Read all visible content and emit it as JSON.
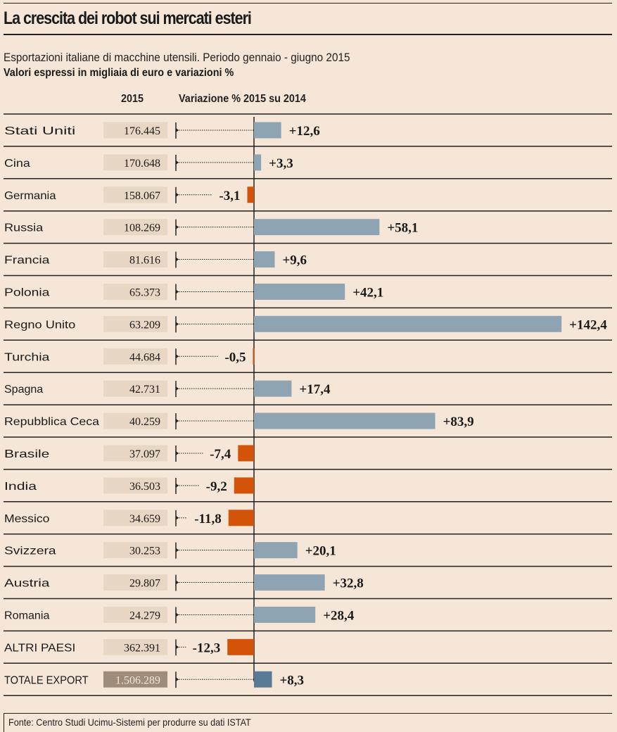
{
  "header": {
    "title": "La crescita dei robot sui mercati esteri",
    "subtitle": "Esportazioni italiane di macchine utensili. Periodo gennaio - giugno 2015",
    "units_note": "Valori espressi in migliaia di euro e variazioni %",
    "col_value": "2015",
    "col_change": "Variazione % 2015 su 2014"
  },
  "colors": {
    "background": "#f5e6d7",
    "positive_bar": "#8fa4b2",
    "negative_bar": "#d35409",
    "total_bar": "#587a94",
    "value_box": "#e8d7c4",
    "total_value_box": "#9e8b7a"
  },
  "chart_data": {
    "type": "bar",
    "orientation": "horizontal",
    "title": "La crescita dei robot sui mercati esteri",
    "subtitle": "Esportazioni italiane di macchine utensili. Periodo gennaio - giugno 2015",
    "xlabel": "Variazione % 2015 su 2014",
    "ylabel": "",
    "value_column_label": "2015",
    "unit": "migliaia di euro / variazione %",
    "xlim": [
      -13,
      143
    ],
    "grid": false,
    "legend": "none",
    "categories": [
      "Stati Uniti",
      "Cina",
      "Germania",
      "Russia",
      "Francia",
      "Polonia",
      "Regno Unito",
      "Turchia",
      "Spagna",
      "Repubblica Ceca",
      "Brasile",
      "India",
      "Messico",
      "Svizzera",
      "Austria",
      "Romania",
      "ALTRI PAESI",
      "TOTALE EXPORT"
    ],
    "values_2015_label": [
      "176.445",
      "170.648",
      "158.067",
      "108.269",
      "81.616",
      "65.373",
      "63.209",
      "44.684",
      "42.731",
      "40.259",
      "37.097",
      "36.503",
      "34.659",
      "30.253",
      "29.807",
      "24.279",
      "362.391",
      "1.506.289"
    ],
    "values_2015": [
      176445,
      170648,
      158067,
      108269,
      81616,
      65373,
      63209,
      44684,
      42731,
      40259,
      37097,
      36503,
      34659,
      30253,
      29807,
      24279,
      362391,
      1506289
    ],
    "change_pct": [
      12.6,
      3.3,
      -3.1,
      58.1,
      9.6,
      42.1,
      142.4,
      -0.5,
      17.4,
      83.9,
      -7.4,
      -9.2,
      -11.8,
      20.1,
      32.8,
      28.4,
      -12.3,
      8.3
    ],
    "change_labels": [
      "+12,6",
      "+3,3",
      "-3,1",
      "+58,1",
      "+9,6",
      "+42,1",
      "+142,4",
      "-0,5",
      "+17,4",
      "+83,9",
      "-7,4",
      "-9,2",
      "-11,8",
      "+20,1",
      "+32,8",
      "+28,4",
      "-12,3",
      "+8,3"
    ],
    "total_index": 17
  },
  "footer": {
    "source": "Fonte: Centro Studi Ucimu-Sistemi per produrre su dati ISTAT"
  }
}
